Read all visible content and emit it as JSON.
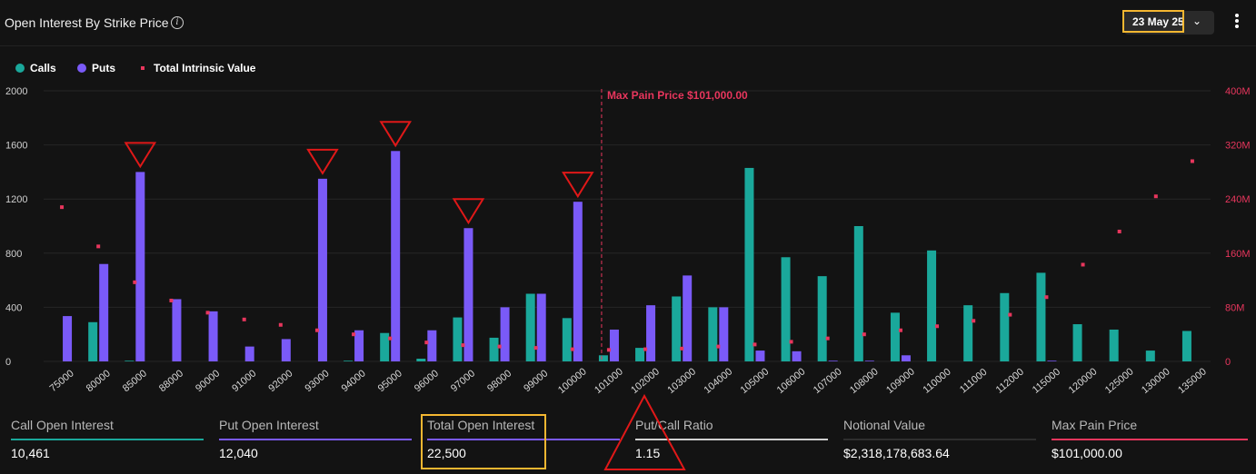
{
  "header": {
    "title": "Open Interest By Strike Price",
    "date_selector": "23 May 25"
  },
  "legend": [
    {
      "label": "Calls",
      "color": "#1aa89b",
      "shape": "circle"
    },
    {
      "label": "Puts",
      "color": "#7a5af8",
      "shape": "circle"
    },
    {
      "label": "Total Intrinsic Value",
      "color": "#e8365d",
      "shape": "square"
    }
  ],
  "chart_data": {
    "type": "bar",
    "categories": [
      "75000",
      "80000",
      "85000",
      "88000",
      "90000",
      "91000",
      "92000",
      "93000",
      "94000",
      "95000",
      "96000",
      "97000",
      "98000",
      "99000",
      "100000",
      "101000",
      "102000",
      "103000",
      "104000",
      "105000",
      "106000",
      "107000",
      "108000",
      "109000",
      "110000",
      "111000",
      "112000",
      "115000",
      "120000",
      "125000",
      "130000",
      "135000"
    ],
    "series": [
      {
        "name": "Calls",
        "color": "#1aa89b",
        "axis": "left",
        "values": [
          0,
          290,
          5,
          0,
          0,
          0,
          0,
          0,
          5,
          210,
          20,
          325,
          175,
          500,
          320,
          45,
          100,
          480,
          400,
          1430,
          770,
          630,
          1000,
          360,
          820,
          415,
          505,
          655,
          275,
          235,
          80,
          225
        ]
      },
      {
        "name": "Puts",
        "color": "#7a5af8",
        "axis": "left",
        "values": [
          335,
          720,
          1400,
          460,
          370,
          110,
          165,
          1350,
          230,
          1555,
          230,
          985,
          400,
          500,
          1180,
          235,
          415,
          635,
          400,
          80,
          75,
          5,
          5,
          45,
          0,
          0,
          0,
          5,
          0,
          0,
          0,
          0
        ]
      },
      {
        "name": "Total Intrinsic Value",
        "color": "#e8365d",
        "axis": "right",
        "style": "marker",
        "values": [
          228,
          170,
          117,
          90,
          72,
          62,
          54,
          46,
          40,
          34,
          28,
          24,
          22,
          20,
          18,
          17,
          18,
          19,
          22,
          25,
          29,
          34,
          40,
          46,
          52,
          60,
          69,
          95,
          143,
          192,
          244,
          296
        ]
      }
    ],
    "y_left": {
      "ticks": [
        0,
        400,
        800,
        1200,
        1600,
        2000
      ],
      "range": [
        0,
        2000
      ]
    },
    "y_right": {
      "ticks": [
        "0",
        "80M",
        "160M",
        "240M",
        "320M",
        "400M"
      ],
      "range": [
        0,
        400
      ],
      "unit": "M"
    },
    "max_pain": {
      "label": "Max Pain Price $101,000.00",
      "category": "101000"
    },
    "annotations": [
      {
        "shape": "down-triangle",
        "category": "85000"
      },
      {
        "shape": "down-triangle",
        "category": "93000"
      },
      {
        "shape": "down-triangle",
        "category": "95000"
      },
      {
        "shape": "down-triangle",
        "category": "97000"
      },
      {
        "shape": "down-triangle",
        "category": "100000"
      }
    ],
    "grid": true
  },
  "stats": [
    {
      "label": "Call Open Interest",
      "value": "10,461",
      "color": "#1aa89b"
    },
    {
      "label": "Put Open Interest",
      "value": "12,040",
      "color": "#7a5af8"
    },
    {
      "label": "Total Open Interest",
      "value": "22,500",
      "color": "#7a5af8",
      "highlight": true
    },
    {
      "label": "Put/Call Ratio",
      "value": "1.15",
      "color": "#cfcfcf",
      "triangle_marker": true
    },
    {
      "label": "Notional Value",
      "value": "$2,318,178,683.64",
      "color": "#2e2e2e"
    },
    {
      "label": "Max Pain Price",
      "value": "$101,000.00",
      "color": "#e8365d"
    }
  ],
  "colors": {
    "highlight_box": "#f5b731",
    "annotation": "#e01818"
  }
}
